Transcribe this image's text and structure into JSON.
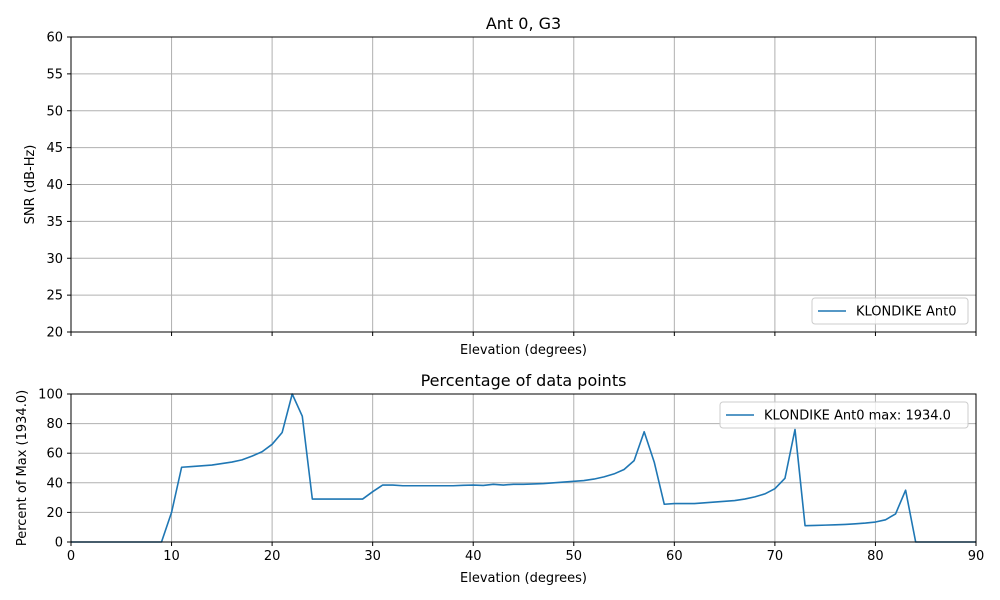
{
  "colors": {
    "series": "#1f77b4",
    "grid": "#b0b0b0",
    "axis": "#000000",
    "legend_border": "#cccccc"
  },
  "chart_data": [
    {
      "type": "line",
      "title": "Ant 0, G3",
      "xlabel": "Elevation (degrees)",
      "ylabel": "SNR (dB-Hz)",
      "xlim": [
        0,
        90
      ],
      "ylim": [
        20,
        60
      ],
      "xticks": [
        0,
        10,
        20,
        30,
        40,
        50,
        60,
        70,
        80,
        90
      ],
      "yticks": [
        20,
        25,
        30,
        35,
        40,
        45,
        50,
        55,
        60
      ],
      "show_xtick_labels": false,
      "grid": true,
      "legend_placement": "lower-right",
      "series": [
        {
          "name": "KLONDIKE Ant0",
          "x": [],
          "y": []
        }
      ]
    },
    {
      "type": "line",
      "title": "Percentage of data points",
      "xlabel": "Elevation (degrees)",
      "ylabel": "Percent of Max (1934.0)",
      "xlim": [
        0,
        90
      ],
      "ylim": [
        0,
        100
      ],
      "xticks": [
        0,
        10,
        20,
        30,
        40,
        50,
        60,
        70,
        80,
        90
      ],
      "yticks": [
        0,
        20,
        40,
        60,
        80,
        100
      ],
      "show_xtick_labels": true,
      "grid": true,
      "legend_placement": "upper-right",
      "series": [
        {
          "name": "KLONDIKE Ant0 max: 1934.0",
          "x": [
            0,
            1,
            2,
            3,
            4,
            5,
            6,
            7,
            8,
            9,
            10,
            11,
            12,
            13,
            14,
            15,
            16,
            17,
            18,
            19,
            20,
            21,
            22,
            23,
            24,
            25,
            26,
            27,
            28,
            29,
            30,
            31,
            32,
            33,
            34,
            35,
            36,
            37,
            38,
            39,
            40,
            41,
            42,
            43,
            44,
            45,
            46,
            47,
            48,
            49,
            50,
            51,
            52,
            53,
            54,
            55,
            56,
            57,
            58,
            59,
            60,
            61,
            62,
            63,
            64,
            65,
            66,
            67,
            68,
            69,
            70,
            71,
            72,
            73,
            74,
            75,
            76,
            77,
            78,
            79,
            80,
            81,
            82,
            83,
            84,
            85,
            86,
            87,
            88,
            89,
            90
          ],
          "y": [
            0,
            0,
            0,
            0,
            0,
            0,
            0,
            0,
            0,
            0,
            20,
            50.5,
            51,
            51.5,
            52,
            53,
            54,
            55.5,
            58,
            61,
            66,
            74,
            100,
            85,
            29,
            29,
            29,
            29,
            29,
            29,
            34,
            38.5,
            38.5,
            38,
            38,
            38,
            38,
            38,
            38,
            38.3,
            38.5,
            38.2,
            39,
            38.5,
            39,
            39,
            39.2,
            39.5,
            40,
            40.5,
            41,
            41.5,
            42.5,
            44,
            46,
            49,
            55,
            74.5,
            54,
            25.5,
            26,
            26,
            26,
            26.5,
            27,
            27.5,
            28,
            29,
            30.5,
            32.5,
            36,
            43,
            76,
            11,
            11.2,
            11.4,
            11.6,
            11.9,
            12.3,
            12.8,
            13.5,
            15,
            19,
            35,
            0,
            0,
            0,
            0,
            0,
            0,
            0
          ]
        }
      ]
    }
  ]
}
